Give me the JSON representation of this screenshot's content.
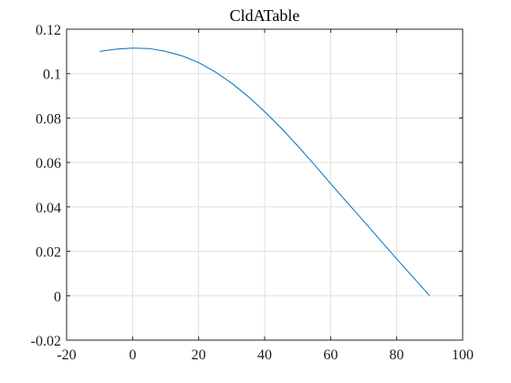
{
  "chart_data": {
    "type": "line",
    "title": "CldATable",
    "xlabel": "",
    "ylabel": "",
    "xlim": [
      -20,
      100
    ],
    "ylim": [
      -0.02,
      0.12
    ],
    "xticks": [
      -20,
      0,
      20,
      40,
      60,
      80,
      100
    ],
    "yticks": [
      -0.02,
      0,
      0.02,
      0.04,
      0.06,
      0.08,
      0.1,
      0.12
    ],
    "xtick_labels": [
      "-20",
      "0",
      "20",
      "40",
      "60",
      "80",
      "100"
    ],
    "ytick_labels": [
      "-0.02",
      "0",
      "0.02",
      "0.04",
      "0.06",
      "0.08",
      "0.1",
      "0.12"
    ],
    "grid": true,
    "line_color": "#0072BD",
    "series": [
      {
        "x": [
          -10,
          -5,
          0,
          5,
          10,
          15,
          20,
          25,
          30,
          35,
          40,
          45,
          50,
          55,
          60,
          65,
          70,
          75,
          80,
          85,
          90
        ],
        "y": [
          0.11,
          0.111,
          0.1115,
          0.1113,
          0.11,
          0.108,
          0.105,
          0.1008,
          0.0957,
          0.0897,
          0.0829,
          0.0755,
          0.0675,
          0.0591,
          0.0505,
          0.042,
          0.0336,
          0.0251,
          0.0166,
          0.0083,
          0.0
        ]
      }
    ]
  }
}
